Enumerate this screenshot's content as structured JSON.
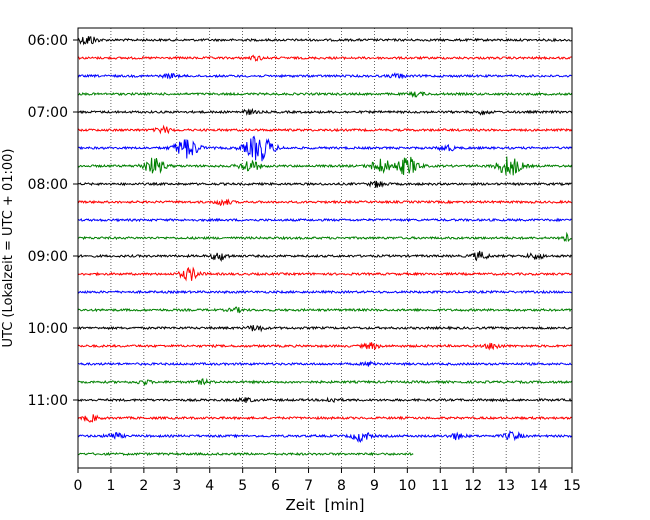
{
  "chart_data": {
    "type": "line",
    "title": "",
    "xlabel": "Zeit  [min]",
    "ylabel": "UTC (Lokalzeit = UTC + 01:00)",
    "xlim": [
      0,
      15
    ],
    "x_ticks": [
      0,
      1,
      2,
      3,
      4,
      5,
      6,
      7,
      8,
      9,
      10,
      11,
      12,
      13,
      14,
      15
    ],
    "x_tick_labels": [
      "0",
      "1",
      "2",
      "3",
      "4",
      "5",
      "6",
      "7",
      "8",
      "9",
      "10",
      "11",
      "12",
      "13",
      "14",
      "15"
    ],
    "y_tick_labels": [
      "06:00",
      "07:00",
      "08:00",
      "09:00",
      "10:00",
      "11:00"
    ],
    "grid": "vertical dotted lines at each minute",
    "trace_interval_min": 15,
    "trace_color_cycle": [
      "#000000",
      "#ff0000",
      "#0000ff",
      "#008000"
    ],
    "series": [
      {
        "start": "06:00",
        "end_min": 15,
        "events": [
          {
            "t": 0.3,
            "amp": 5
          }
        ]
      },
      {
        "start": "06:15",
        "end_min": 15,
        "events": [
          {
            "t": 5.4,
            "amp": 2
          }
        ]
      },
      {
        "start": "06:30",
        "end_min": 15,
        "events": [
          {
            "t": 2.8,
            "amp": 2
          },
          {
            "t": 9.7,
            "amp": 2
          }
        ]
      },
      {
        "start": "06:45",
        "end_min": 15,
        "events": [
          {
            "t": 10.3,
            "amp": 2
          }
        ]
      },
      {
        "start": "07:00",
        "end_min": 15,
        "events": [
          {
            "t": 5.2,
            "amp": 2
          },
          {
            "t": 12.3,
            "amp": 2
          }
        ]
      },
      {
        "start": "07:15",
        "end_min": 15,
        "events": [
          {
            "t": 2.6,
            "amp": 3
          }
        ]
      },
      {
        "start": "07:30",
        "end_min": 15,
        "events": [
          {
            "t": 3.3,
            "amp": 10
          },
          {
            "t": 5.5,
            "amp": 13
          },
          {
            "t": 11.2,
            "amp": 3
          }
        ]
      },
      {
        "start": "07:45",
        "end_min": 15,
        "events": [
          {
            "t": 2.3,
            "amp": 8
          },
          {
            "t": 5.2,
            "amp": 6
          },
          {
            "t": 9.2,
            "amp": 7
          },
          {
            "t": 10.0,
            "amp": 9
          },
          {
            "t": 13.1,
            "amp": 10
          }
        ]
      },
      {
        "start": "08:00",
        "end_min": 15,
        "events": [
          {
            "t": 9.1,
            "amp": 3
          }
        ]
      },
      {
        "start": "08:15",
        "end_min": 15,
        "events": [
          {
            "t": 4.4,
            "amp": 3
          }
        ]
      },
      {
        "start": "08:30",
        "end_min": 15,
        "events": []
      },
      {
        "start": "08:45",
        "end_min": 15,
        "events": [
          {
            "t": 14.9,
            "amp": 4
          }
        ]
      },
      {
        "start": "09:00",
        "end_min": 15,
        "events": [
          {
            "t": 4.3,
            "amp": 4
          },
          {
            "t": 12.2,
            "amp": 4
          },
          {
            "t": 13.9,
            "amp": 3
          }
        ]
      },
      {
        "start": "09:15",
        "end_min": 15,
        "events": [
          {
            "t": 3.4,
            "amp": 6
          }
        ]
      },
      {
        "start": "09:30",
        "end_min": 15,
        "events": []
      },
      {
        "start": "09:45",
        "end_min": 15,
        "events": [
          {
            "t": 4.8,
            "amp": 2
          }
        ]
      },
      {
        "start": "10:00",
        "end_min": 15,
        "events": [
          {
            "t": 5.4,
            "amp": 3
          }
        ]
      },
      {
        "start": "10:15",
        "end_min": 15,
        "events": [
          {
            "t": 8.9,
            "amp": 3
          },
          {
            "t": 12.6,
            "amp": 3
          }
        ]
      },
      {
        "start": "10:30",
        "end_min": 15,
        "events": [
          {
            "t": 8.9,
            "amp": 2
          }
        ]
      },
      {
        "start": "10:45",
        "end_min": 15,
        "events": [
          {
            "t": 2.0,
            "amp": 2
          },
          {
            "t": 3.8,
            "amp": 2
          }
        ]
      },
      {
        "start": "11:00",
        "end_min": 15,
        "events": [
          {
            "t": 5.1,
            "amp": 2
          },
          {
            "t": 7.7,
            "amp": 2
          }
        ]
      },
      {
        "start": "11:15",
        "end_min": 15,
        "events": [
          {
            "t": 0.4,
            "amp": 3
          }
        ]
      },
      {
        "start": "11:30",
        "end_min": 15,
        "events": [
          {
            "t": 1.1,
            "amp": 3
          },
          {
            "t": 8.6,
            "amp": 5
          },
          {
            "t": 11.5,
            "amp": 3
          },
          {
            "t": 13.2,
            "amp": 4
          }
        ]
      },
      {
        "start": "11:45",
        "end_min": 10.2,
        "events": []
      }
    ]
  }
}
